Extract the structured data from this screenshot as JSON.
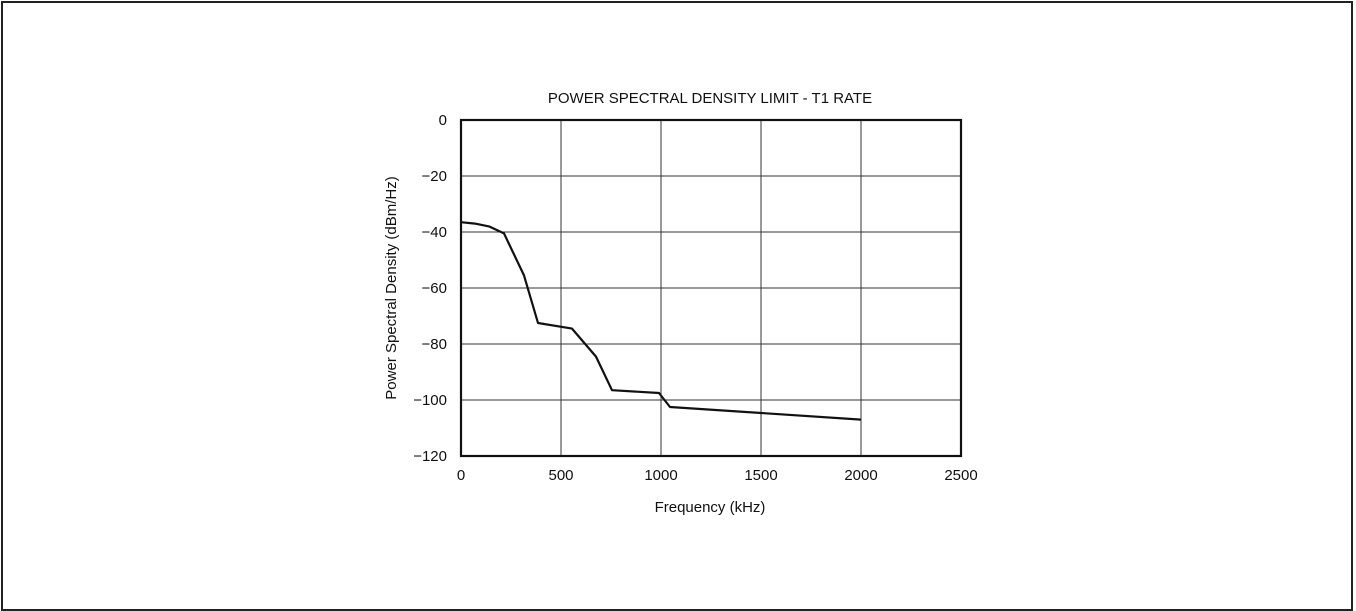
{
  "chart_data": {
    "type": "line",
    "title": "POWER SPECTRAL DENSITY LIMIT - T1 RATE",
    "xlabel": "Frequency (kHz)",
    "ylabel": "Power Spectral Density (dBm/Hz)",
    "xlim": [
      0,
      2500
    ],
    "ylim": [
      -120,
      0
    ],
    "xticks": [
      0,
      500,
      1000,
      1500,
      2000,
      2500
    ],
    "yticks": [
      0,
      -20,
      -40,
      -60,
      -80,
      -100,
      -120
    ],
    "xtick_labels": [
      "0",
      "500",
      "1000",
      "1500",
      "2000",
      "2500"
    ],
    "ytick_labels": [
      "0",
      "−20",
      "−40",
      "−60",
      "−80",
      "−100",
      "−120"
    ],
    "grid": true,
    "legend": "none",
    "line_color": "#111111",
    "series": [
      {
        "x": [
          0,
          70,
          140,
          215,
          315,
          385,
          555,
          675,
          755,
          990,
          1045,
          2000
        ],
        "y": [
          -36.5,
          -37,
          -38,
          -40.5,
          -55.5,
          -72.5,
          -74.5,
          -84.5,
          -96.5,
          -97.5,
          -102.5,
          -107
        ]
      }
    ]
  }
}
